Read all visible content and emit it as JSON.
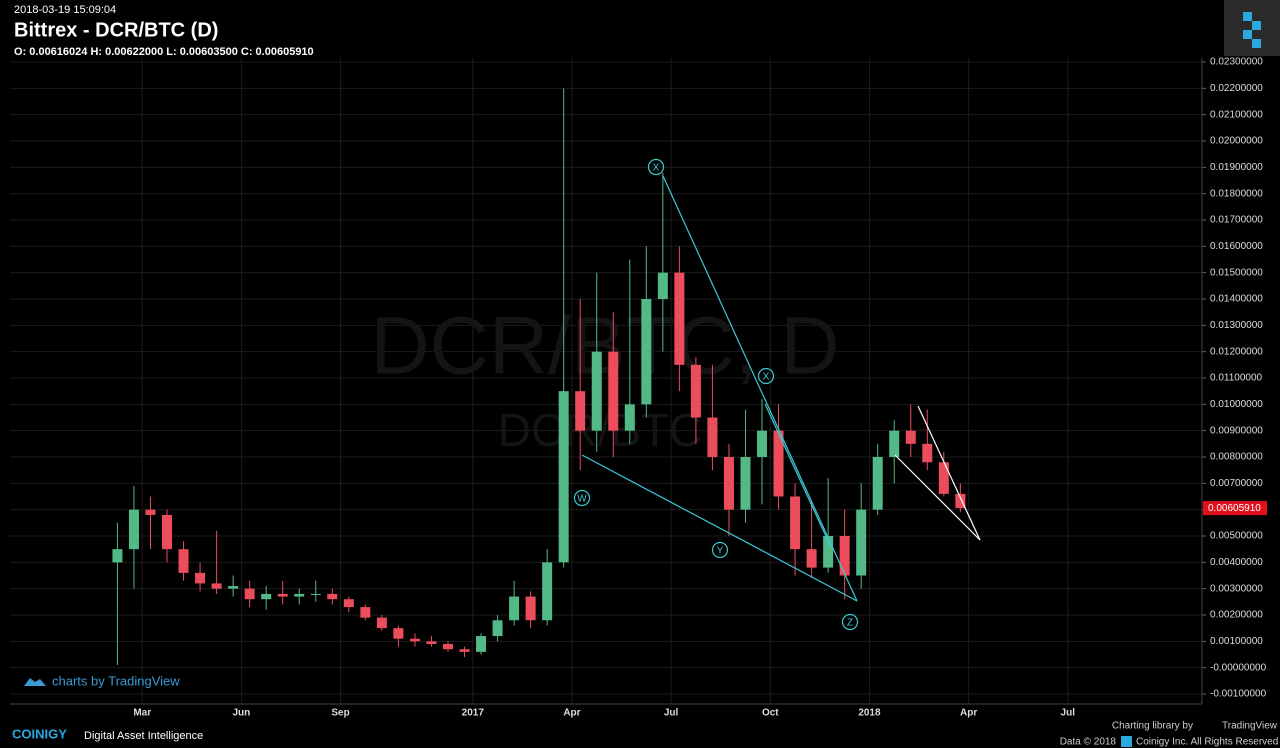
{
  "header": {
    "timestamp": "2018-03-19 15:09:04",
    "title": "Bittrex - DCR/BTC (D)",
    "ohlc": "O: 0.00616024 H: 0.00622000 L: 0.00603500 C: 0.00605910"
  },
  "watermark": {
    "main": "DCR/BTC, D",
    "sub": "DCR/BTC"
  },
  "annotations": [
    "X",
    "X",
    "W",
    "Y",
    "Z"
  ],
  "branding": {
    "tradingview": "charts by TradingView",
    "library": "Charting library by",
    "library_name": "TradingView",
    "coinigy": "COINIGY",
    "tagline": "Digital Asset Intelligence",
    "data": "Data © 2018",
    "rights": "Coinigy Inc. All Rights Reserved"
  },
  "chart_data": {
    "type": "candlestick",
    "up_color": "#53b987",
    "down_color": "#eb4d5c",
    "grid": true,
    "categories": [
      null,
      null,
      null,
      null,
      null,
      null,
      null,
      null,
      "Mar",
      null,
      null,
      null,
      null,
      null,
      "Jun",
      null,
      null,
      null,
      null,
      null,
      "Sep",
      null,
      null,
      null,
      null,
      null,
      null,
      null,
      "2017",
      null,
      null,
      null,
      null,
      null,
      "Apr",
      null,
      null,
      null,
      null,
      null,
      "Jul",
      null,
      null,
      null,
      null,
      null,
      "Oct",
      null,
      null,
      null,
      null,
      null,
      "2018",
      null,
      null,
      null,
      null,
      null,
      "Apr",
      null,
      null,
      null,
      null,
      null,
      "Jul",
      null,
      null,
      null,
      null,
      null,
      null,
      null
    ],
    "open": [
      null,
      null,
      null,
      null,
      null,
      null,
      0.004,
      0.0045,
      0.006,
      0.0058,
      0.0045,
      0.0036,
      0.0032,
      0.003,
      0.003,
      0.0026,
      0.0028,
      0.0027,
      0.0028,
      0.0028,
      0.0026,
      0.0023,
      0.0019,
      0.0015,
      0.0011,
      0.001,
      0.0009,
      0.0007,
      0.0006,
      0.0012,
      0.0018,
      0.0027,
      0.0018,
      0.004,
      0.0105,
      0.009,
      0.012,
      0.009,
      0.01,
      0.014,
      0.015,
      0.0115,
      0.0095,
      0.008,
      0.006,
      0.008,
      0.009,
      0.0065,
      0.0045,
      0.0038,
      0.005,
      0.0035,
      0.006,
      0.008,
      0.009,
      0.0085,
      0.0078,
      0.0066,
      null,
      null,
      null,
      null,
      null,
      null,
      null,
      null,
      null,
      null,
      null,
      null,
      null,
      null
    ],
    "high": [
      null,
      null,
      null,
      null,
      null,
      null,
      0.0055,
      0.0069,
      0.0065,
      0.006,
      0.0048,
      0.004,
      0.0052,
      0.0035,
      0.0033,
      0.0031,
      0.0033,
      0.003,
      0.0033,
      0.003,
      0.0027,
      0.0024,
      0.002,
      0.0016,
      0.0013,
      0.0012,
      0.001,
      0.0008,
      0.0013,
      0.002,
      0.0033,
      0.0029,
      0.0045,
      0.022,
      0.014,
      0.015,
      0.0135,
      0.0155,
      0.016,
      0.0188,
      0.016,
      0.0118,
      0.0115,
      0.0085,
      0.0098,
      0.0102,
      0.01,
      0.007,
      0.0063,
      0.0072,
      0.006,
      0.007,
      0.0085,
      0.0094,
      0.01,
      0.0098,
      0.0082,
      0.007,
      null,
      null,
      null,
      null,
      null,
      null,
      null,
      null,
      null,
      null,
      null,
      null,
      null,
      null
    ],
    "low": [
      null,
      null,
      null,
      null,
      null,
      null,
      0.0001,
      0.003,
      0.0045,
      0.004,
      0.0033,
      0.0029,
      0.0028,
      0.0027,
      0.0023,
      0.0022,
      0.0024,
      0.0024,
      0.0025,
      0.0024,
      0.0021,
      0.0018,
      0.0014,
      0.0008,
      0.0008,
      0.0008,
      0.0006,
      0.0004,
      0.0005,
      0.001,
      0.0016,
      0.0015,
      0.0016,
      0.0038,
      0.0075,
      0.0082,
      0.008,
      0.0085,
      0.0095,
      0.012,
      0.0105,
      0.0085,
      0.0075,
      0.005,
      0.0055,
      0.0062,
      0.006,
      0.0035,
      0.0034,
      0.0036,
      0.0026,
      0.003,
      0.0058,
      0.007,
      0.008,
      0.0075,
      0.0065,
      0.0059,
      null,
      null,
      null,
      null,
      null,
      null,
      null,
      null,
      null,
      null,
      null,
      null,
      null,
      null
    ],
    "close": [
      null,
      null,
      null,
      null,
      null,
      null,
      0.0045,
      0.006,
      0.0058,
      0.0045,
      0.0036,
      0.0032,
      0.003,
      0.0031,
      0.0026,
      0.0028,
      0.0027,
      0.0028,
      0.0028,
      0.0026,
      0.0023,
      0.0019,
      0.0015,
      0.0011,
      0.001,
      0.0009,
      0.0007,
      0.0006,
      0.0012,
      0.0018,
      0.0027,
      0.0018,
      0.004,
      0.0105,
      0.009,
      0.012,
      0.009,
      0.01,
      0.014,
      0.015,
      0.0115,
      0.0095,
      0.008,
      0.006,
      0.008,
      0.009,
      0.0065,
      0.0045,
      0.0038,
      0.005,
      0.0035,
      0.006,
      0.008,
      0.009,
      0.0085,
      0.0078,
      0.0066,
      0.0060591,
      null,
      null,
      null,
      null,
      null,
      null,
      null,
      null,
      null,
      null,
      null,
      null,
      null,
      null
    ],
    "last_price": {
      "value": 0.0060591,
      "label": "0.00605910"
    },
    "ylim": [
      -0.001,
      0.023
    ],
    "yticks": [
      {
        "value": -0.001,
        "label": "-0.00100000"
      },
      {
        "value": 0,
        "label": "-0.00000000"
      },
      {
        "value": 0.001,
        "label": "0.00100000"
      },
      {
        "value": 0.002,
        "label": "0.00200000"
      },
      {
        "value": 0.003,
        "label": "0.00300000"
      },
      {
        "value": 0.004,
        "label": "0.00400000"
      },
      {
        "value": 0.005,
        "label": "0.00500000"
      },
      {
        "value": 0.006,
        "label": "0.00600000"
      },
      {
        "value": 0.007,
        "label": "0.00700000"
      },
      {
        "value": 0.008,
        "label": "0.00800000"
      },
      {
        "value": 0.009,
        "label": "0.00900000"
      },
      {
        "value": 0.01,
        "label": "0.01000000"
      },
      {
        "value": 0.011,
        "label": "0.01100000"
      },
      {
        "value": 0.012,
        "label": "0.01200000"
      },
      {
        "value": 0.013,
        "label": "0.01300000"
      },
      {
        "value": 0.014,
        "label": "0.01400000"
      },
      {
        "value": 0.015,
        "label": "0.01500000"
      },
      {
        "value": 0.016,
        "label": "0.01600000"
      },
      {
        "value": 0.017,
        "label": "0.01700000"
      },
      {
        "value": 0.018,
        "label": "0.01800000"
      },
      {
        "value": 0.019,
        "label": "0.01900000"
      },
      {
        "value": 0.02,
        "label": "0.02000000"
      },
      {
        "value": 0.021,
        "label": "0.02100000"
      },
      {
        "value": 0.022,
        "label": "0.02200000"
      },
      {
        "value": 0.023,
        "label": "0.02300000"
      }
    ]
  }
}
